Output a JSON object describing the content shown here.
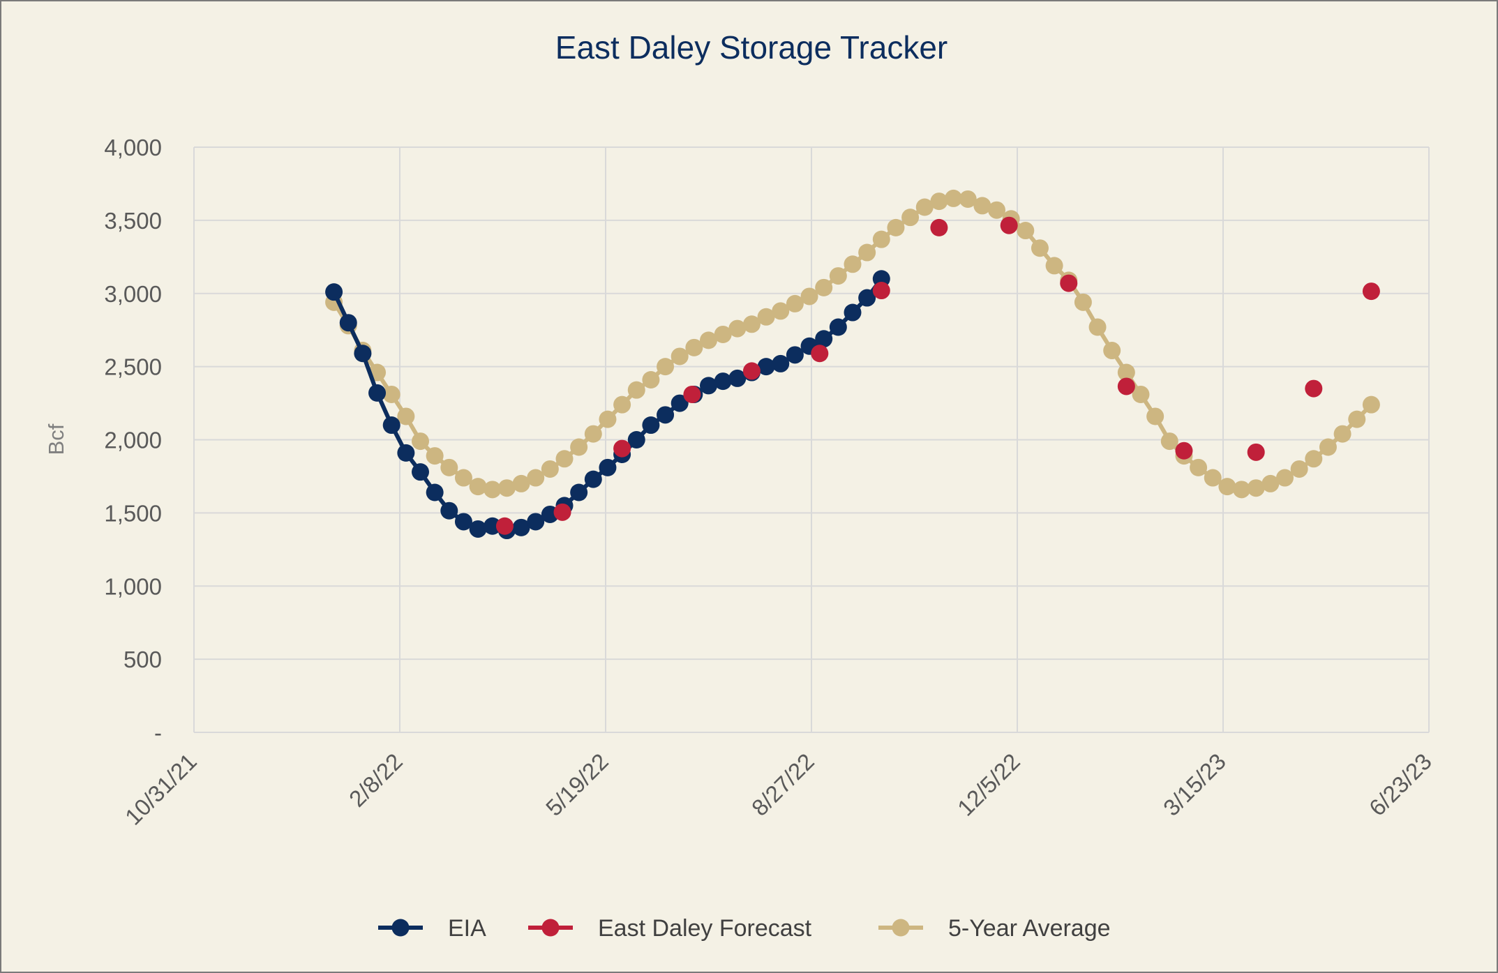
{
  "chart_data": {
    "type": "line",
    "title": "East Daley Storage Tracker",
    "ylabel": "Bcf",
    "xlabel": "",
    "x_range": [
      "2021-10-31",
      "2023-06-23"
    ],
    "ylim": [
      0,
      4000
    ],
    "y_ticks": [
      0,
      500,
      1000,
      1500,
      2000,
      2500,
      3000,
      3500,
      4000
    ],
    "y_tick_labels": [
      "-",
      "500",
      "1,000",
      "1,500",
      "2,000",
      "2,500",
      "3,000",
      "3,500",
      "4,000"
    ],
    "x_ticks": [
      "2021-10-31",
      "2022-02-08",
      "2022-05-19",
      "2022-08-27",
      "2022-12-05",
      "2023-03-15",
      "2023-06-23"
    ],
    "x_tick_labels": [
      "10/31/21",
      "2/8/22",
      "5/19/22",
      "8/27/22",
      "12/5/22",
      "3/15/23",
      "6/23/23"
    ],
    "grid": true,
    "legend_position": "bottom",
    "series": [
      {
        "name": "EIA",
        "color": "#0c2d5e",
        "line": true,
        "x": [
          "2022-01-07",
          "2022-01-14",
          "2022-01-21",
          "2022-01-28",
          "2022-02-04",
          "2022-02-11",
          "2022-02-18",
          "2022-02-25",
          "2022-03-04",
          "2022-03-11",
          "2022-03-18",
          "2022-03-25",
          "2022-04-01",
          "2022-04-08",
          "2022-04-15",
          "2022-04-22",
          "2022-04-29",
          "2022-05-06",
          "2022-05-13",
          "2022-05-20",
          "2022-05-27",
          "2022-06-03",
          "2022-06-10",
          "2022-06-17",
          "2022-06-24",
          "2022-07-01",
          "2022-07-08",
          "2022-07-15",
          "2022-07-22",
          "2022-07-29",
          "2022-08-05",
          "2022-08-12",
          "2022-08-19",
          "2022-08-26",
          "2022-09-02",
          "2022-09-09",
          "2022-09-16",
          "2022-09-23",
          "2022-09-30"
        ],
        "values": [
          3010,
          2800,
          2590,
          2320,
          2100,
          1910,
          1780,
          1640,
          1515,
          1440,
          1390,
          1410,
          1380,
          1400,
          1440,
          1490,
          1550,
          1640,
          1730,
          1810,
          1900,
          2000,
          2100,
          2170,
          2250,
          2310,
          2370,
          2400,
          2420,
          2460,
          2500,
          2520,
          2580,
          2640,
          2690,
          2770,
          2870,
          2970,
          3100
        ]
      },
      {
        "name": "East Daley Forecast",
        "color": "#c0203a",
        "line": false,
        "x": [
          "2022-03-31",
          "2022-04-28",
          "2022-05-27",
          "2022-06-30",
          "2022-07-29",
          "2022-08-31",
          "2022-09-30",
          "2022-10-28",
          "2022-12-01",
          "2022-12-30",
          "2023-01-27",
          "2023-02-24",
          "2023-03-31",
          "2023-04-28",
          "2023-05-26"
        ],
        "values": [
          1410,
          1505,
          1940,
          2310,
          2470,
          2590,
          3020,
          3450,
          3465,
          3070,
          2365,
          1925,
          1915,
          2350,
          3015
        ]
      },
      {
        "name": "5-Year Average",
        "color": "#cdb681",
        "line": true,
        "x": [
          "2022-01-07",
          "2022-01-14",
          "2022-01-21",
          "2022-01-28",
          "2022-02-04",
          "2022-02-11",
          "2022-02-18",
          "2022-02-25",
          "2022-03-04",
          "2022-03-11",
          "2022-03-18",
          "2022-03-25",
          "2022-04-01",
          "2022-04-08",
          "2022-04-15",
          "2022-04-22",
          "2022-04-29",
          "2022-05-06",
          "2022-05-13",
          "2022-05-20",
          "2022-05-27",
          "2022-06-03",
          "2022-06-10",
          "2022-06-17",
          "2022-06-24",
          "2022-07-01",
          "2022-07-08",
          "2022-07-15",
          "2022-07-22",
          "2022-07-29",
          "2022-08-05",
          "2022-08-12",
          "2022-08-19",
          "2022-08-26",
          "2022-09-02",
          "2022-09-09",
          "2022-09-16",
          "2022-09-23",
          "2022-09-30",
          "2022-10-07",
          "2022-10-14",
          "2022-10-21",
          "2022-10-28",
          "2022-11-04",
          "2022-11-11",
          "2022-11-18",
          "2022-11-25",
          "2022-12-02",
          "2022-12-09",
          "2022-12-16",
          "2022-12-23",
          "2022-12-30",
          "2023-01-06",
          "2023-01-13",
          "2023-01-20",
          "2023-01-27",
          "2023-02-03",
          "2023-02-10",
          "2023-02-17",
          "2023-02-24",
          "2023-03-03",
          "2023-03-10",
          "2023-03-17",
          "2023-03-24",
          "2023-03-31",
          "2023-04-07",
          "2023-04-14",
          "2023-04-21",
          "2023-04-28",
          "2023-05-05",
          "2023-05-12",
          "2023-05-19",
          "2023-05-26"
        ],
        "values": [
          2940,
          2780,
          2610,
          2460,
          2310,
          2160,
          1990,
          1890,
          1810,
          1740,
          1680,
          1660,
          1670,
          1700,
          1740,
          1800,
          1870,
          1950,
          2040,
          2140,
          2240,
          2340,
          2410,
          2500,
          2570,
          2630,
          2680,
          2720,
          2760,
          2790,
          2840,
          2880,
          2930,
          2980,
          3040,
          3120,
          3200,
          3280,
          3370,
          3450,
          3520,
          3590,
          3630,
          3650,
          3645,
          3600,
          3570,
          3510,
          3430,
          3310,
          3190,
          3090,
          2940,
          2770,
          2610,
          2460,
          2310,
          2160,
          1990,
          1890,
          1810,
          1740,
          1680,
          1660,
          1670,
          1700,
          1740,
          1800,
          1870,
          1950,
          2040,
          2140,
          2240
        ]
      }
    ]
  }
}
